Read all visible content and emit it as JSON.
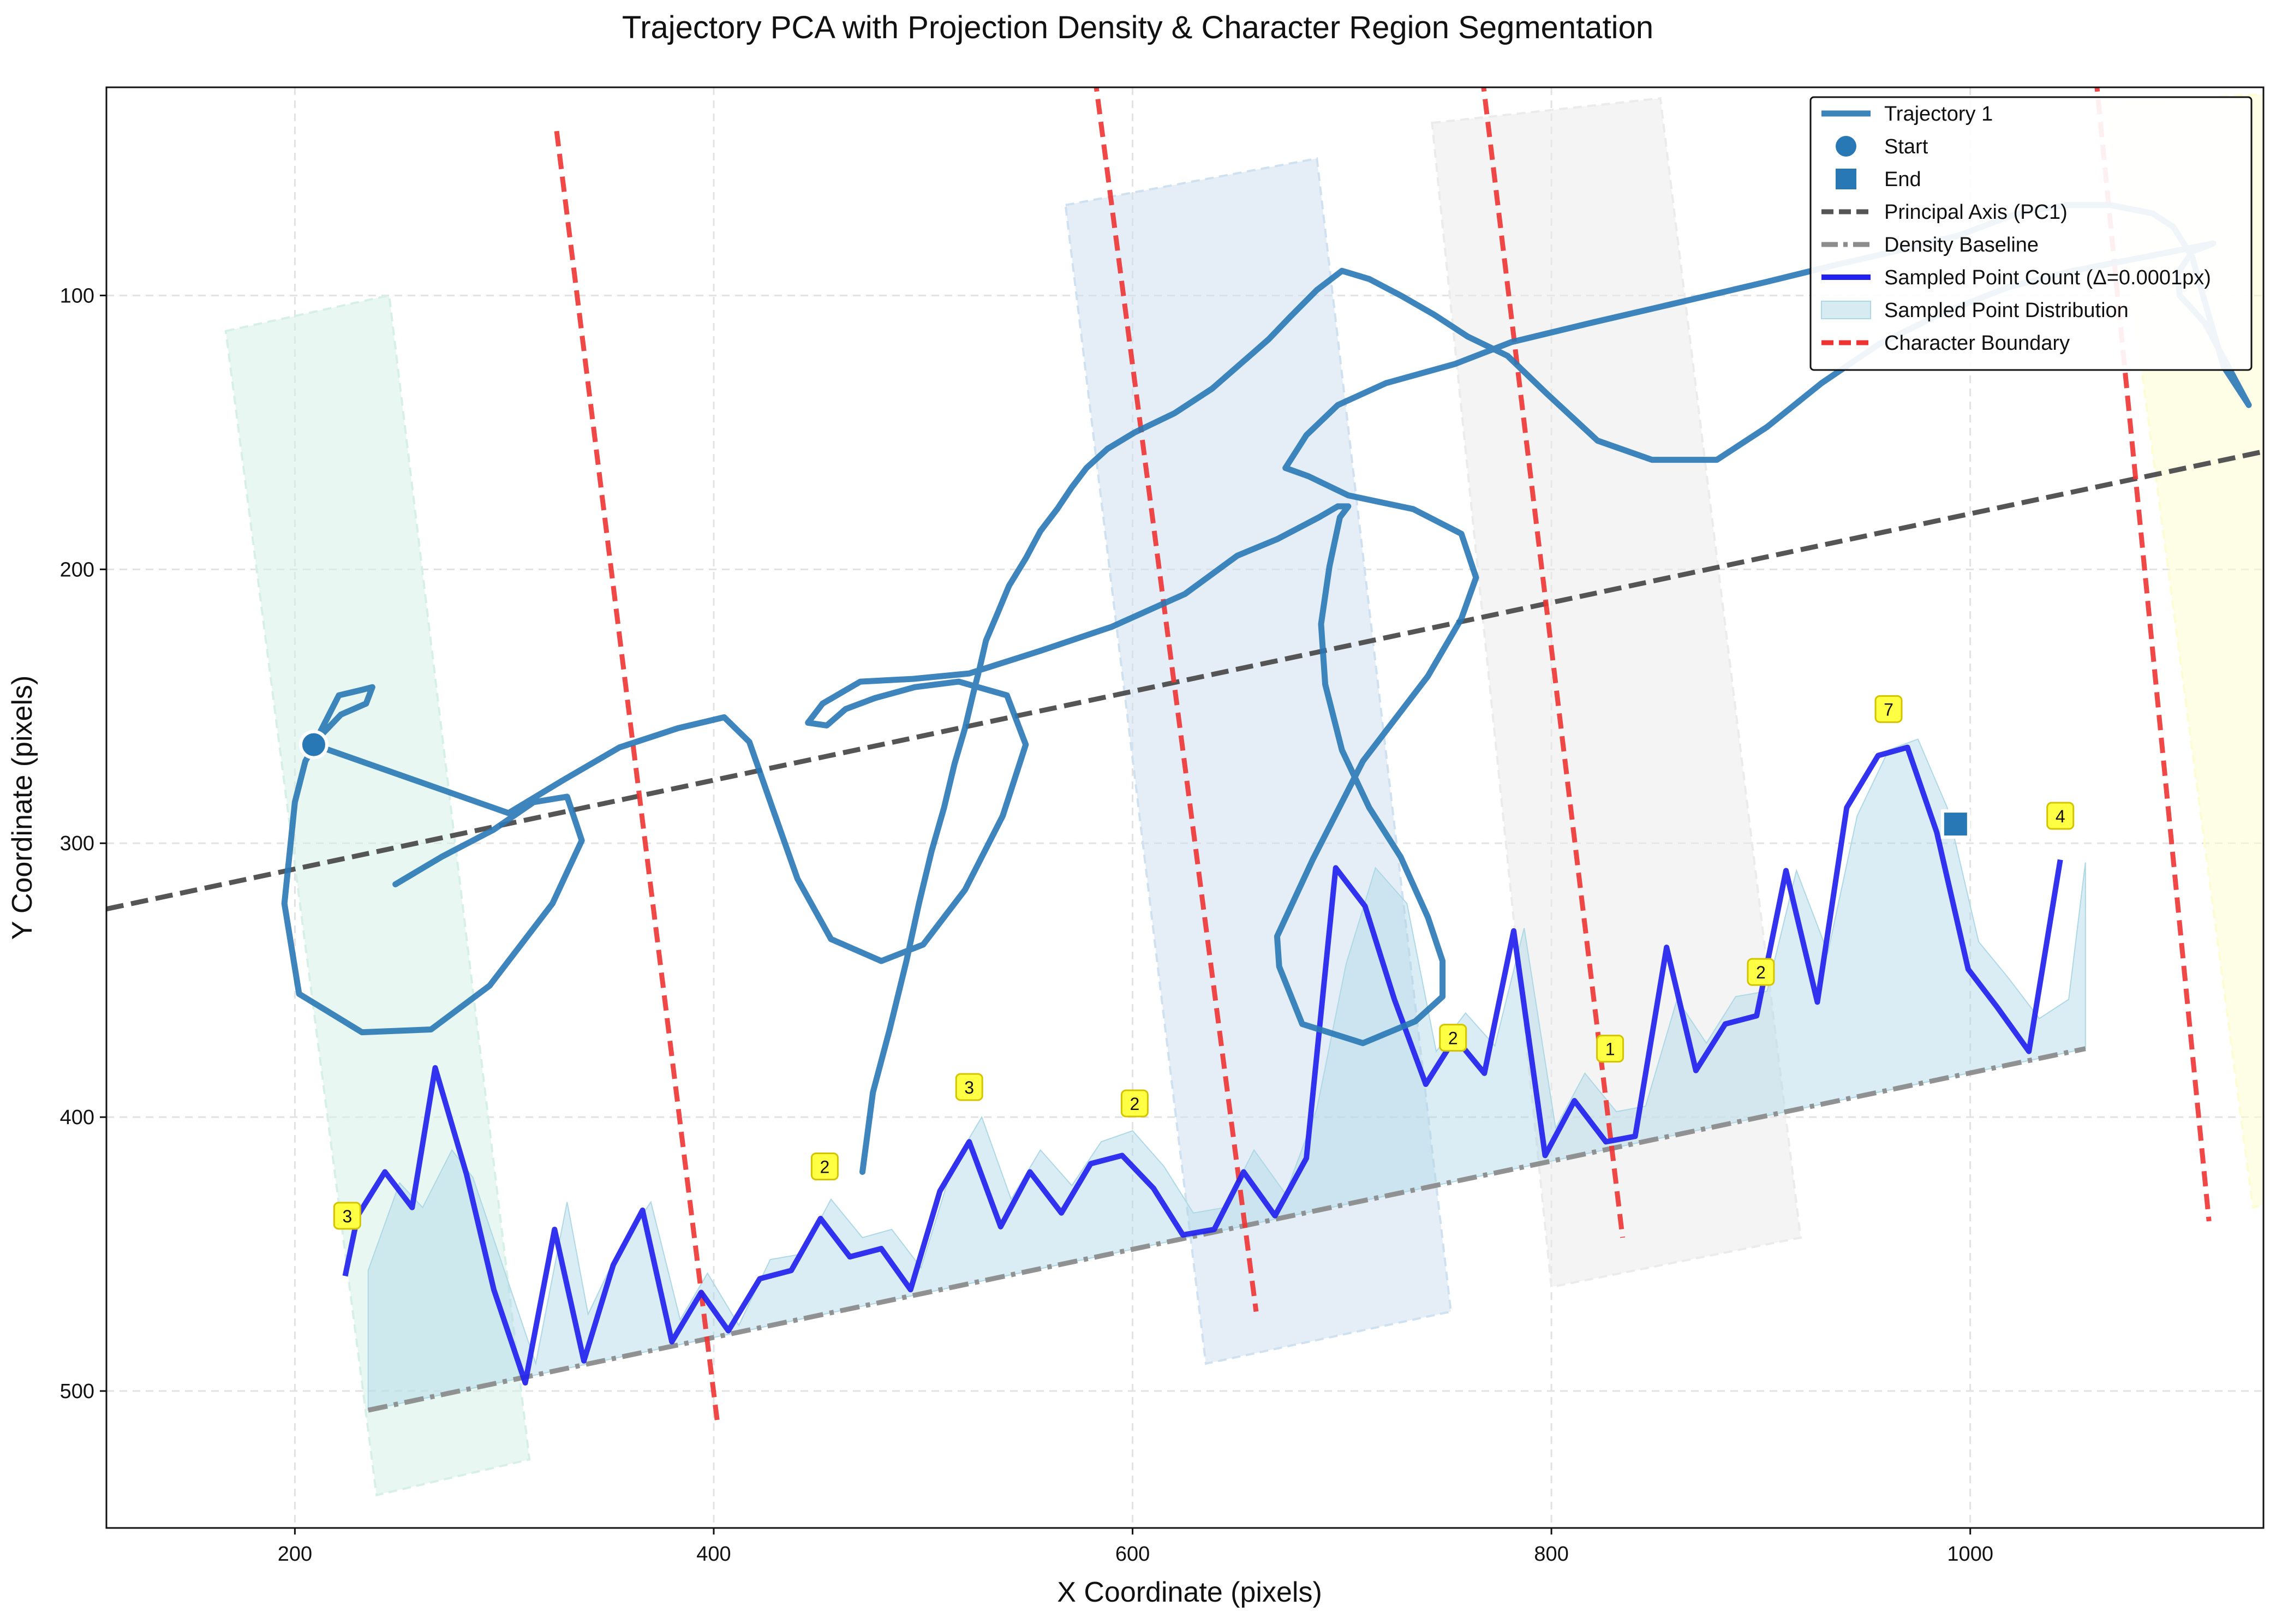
{
  "chart_data": {
    "type": "line",
    "title": "Trajectory PCA with Projection Density & Character Region Segmentation",
    "xlabel": "X Coordinate (pixels)",
    "ylabel": "Y Coordinate (pixels)",
    "xlim": [
      110,
      1140
    ],
    "ylim": [
      550,
      24
    ],
    "y_inverted": true,
    "xticks": [
      200,
      400,
      600,
      800,
      1000
    ],
    "yticks": [
      100,
      200,
      300,
      400,
      500
    ],
    "grid": true,
    "legend_position": "top-right",
    "legend": [
      {
        "key": "trajectory",
        "label": "Trajectory 1"
      },
      {
        "key": "start",
        "label": "Start"
      },
      {
        "key": "end",
        "label": "End"
      },
      {
        "key": "pc1",
        "label": "Principal Axis (PC1)"
      },
      {
        "key": "baseline",
        "label": "Density Baseline"
      },
      {
        "key": "count",
        "label": "Sampled Point Count (Δ=0.0001px)"
      },
      {
        "key": "dist",
        "label": "Sampled Point Distribution"
      },
      {
        "key": "boundary",
        "label": "Character Boundary"
      }
    ],
    "colors": {
      "trajectory": "#2878b5",
      "pc1": "#555555",
      "baseline": "#8c8c8c",
      "count": "#2222ee",
      "dist": "#add8e6",
      "boundary": "#ee3333",
      "annotation_bg": "#ffff44",
      "annotation_border": "#d4c400"
    },
    "regions": [
      {
        "color": "#d6f0e8",
        "corners": [
          [
            167,
            113
          ],
          [
            245,
            100
          ],
          [
            312,
            525
          ],
          [
            239,
            538
          ]
        ]
      },
      {
        "color": "#cfe0f0",
        "corners": [
          [
            568,
            67
          ],
          [
            688,
            50
          ],
          [
            752,
            471
          ],
          [
            635,
            490
          ]
        ]
      },
      {
        "color": "#ebebeb",
        "corners": [
          [
            743,
            37
          ],
          [
            852,
            28
          ],
          [
            919,
            444
          ],
          [
            800,
            462
          ]
        ]
      },
      {
        "color": "#fdfcd2",
        "corners": [
          [
            1065,
            30
          ],
          [
            1173,
            25
          ],
          [
            1244,
            408
          ],
          [
            1135,
            433
          ]
        ]
      }
    ],
    "trajectory": [
      [
        248,
        315
      ],
      [
        270,
        305
      ],
      [
        295,
        295
      ],
      [
        314,
        285
      ],
      [
        330,
        283
      ],
      [
        337,
        299
      ],
      [
        323,
        322
      ],
      [
        293,
        352
      ],
      [
        265,
        368
      ],
      [
        232,
        369
      ],
      [
        202,
        355
      ],
      [
        195,
        322
      ],
      [
        200,
        285
      ],
      [
        205,
        270
      ],
      [
        212,
        261
      ],
      [
        222,
        253
      ],
      [
        234,
        249
      ],
      [
        237,
        243
      ],
      [
        232,
        244
      ],
      [
        221,
        246
      ],
      [
        209,
        264
      ],
      [
        302,
        289
      ],
      [
        328,
        277
      ],
      [
        355,
        265
      ],
      [
        383,
        258
      ],
      [
        405,
        254
      ],
      [
        417,
        263
      ],
      [
        428,
        287
      ],
      [
        440,
        313
      ],
      [
        456,
        335
      ],
      [
        480,
        343
      ],
      [
        500,
        337
      ],
      [
        520,
        317
      ],
      [
        538,
        290
      ],
      [
        549,
        264
      ],
      [
        540,
        246
      ],
      [
        517,
        241
      ],
      [
        496,
        243
      ],
      [
        477,
        247
      ],
      [
        463,
        251
      ],
      [
        454,
        257
      ],
      [
        445,
        256
      ],
      [
        452,
        249
      ],
      [
        470,
        241
      ],
      [
        495,
        240
      ],
      [
        522,
        238
      ],
      [
        555,
        230
      ],
      [
        590,
        221
      ],
      [
        625,
        209
      ],
      [
        650,
        195
      ],
      [
        669,
        189
      ],
      [
        689,
        181
      ],
      [
        698,
        177
      ],
      [
        703,
        177
      ],
      [
        699,
        181
      ],
      [
        694,
        199
      ],
      [
        690,
        220
      ],
      [
        692,
        242
      ],
      [
        700,
        266
      ],
      [
        713,
        287
      ],
      [
        728,
        305
      ],
      [
        741,
        327
      ],
      [
        748,
        343
      ],
      [
        748,
        356
      ],
      [
        735,
        365
      ],
      [
        710,
        373
      ],
      [
        681,
        366
      ],
      [
        670,
        345
      ],
      [
        669,
        334
      ],
      [
        686,
        306
      ],
      [
        710,
        270
      ],
      [
        741,
        239
      ],
      [
        757,
        218
      ],
      [
        764,
        203
      ],
      [
        757,
        187
      ],
      [
        734,
        178
      ],
      [
        703,
        173
      ],
      [
        684,
        166
      ],
      [
        673,
        163
      ],
      [
        683,
        151
      ],
      [
        698,
        140
      ],
      [
        721,
        132
      ],
      [
        754,
        125
      ],
      [
        781,
        117
      ],
      [
        819,
        110
      ],
      [
        864,
        102
      ],
      [
        903,
        95
      ],
      [
        935,
        89
      ],
      [
        969,
        83
      ],
      [
        995,
        78
      ],
      [
        1019,
        71
      ],
      [
        1029,
        69
      ],
      [
        1046,
        67
      ],
      [
        1067,
        67
      ],
      [
        1087,
        70
      ],
      [
        1097,
        75
      ],
      [
        1106,
        86
      ],
      [
        1113,
        105
      ],
      [
        1121,
        126
      ],
      [
        1133,
        140
      ],
      [
        1112,
        110
      ],
      [
        1100,
        100
      ],
      [
        1099,
        92
      ],
      [
        1106,
        84
      ],
      [
        1116,
        81
      ],
      [
        1083,
        86
      ],
      [
        1049,
        91
      ],
      [
        1018,
        97
      ],
      [
        985,
        107
      ],
      [
        956,
        118
      ],
      [
        929,
        132
      ],
      [
        903,
        148
      ],
      [
        879,
        160
      ],
      [
        848,
        160
      ],
      [
        822,
        153
      ],
      [
        798,
        136
      ],
      [
        779,
        122
      ],
      [
        760,
        115
      ],
      [
        744,
        107
      ],
      [
        728,
        100
      ],
      [
        713,
        94
      ],
      [
        700,
        91
      ],
      [
        688,
        98
      ],
      [
        675,
        108
      ],
      [
        665,
        116
      ],
      [
        653,
        124
      ],
      [
        638,
        134
      ],
      [
        620,
        143
      ],
      [
        601,
        150
      ],
      [
        588,
        156
      ],
      [
        578,
        163
      ],
      [
        571,
        170
      ],
      [
        564,
        178
      ],
      [
        556,
        186
      ],
      [
        549,
        196
      ],
      [
        541,
        206
      ],
      [
        535,
        217
      ],
      [
        530,
        226
      ],
      [
        527,
        236
      ],
      [
        524,
        245
      ],
      [
        520,
        258
      ],
      [
        515,
        271
      ],
      [
        510,
        287
      ],
      [
        504,
        303
      ],
      [
        498,
        322
      ],
      [
        492,
        343
      ],
      [
        484,
        368
      ],
      [
        476,
        391
      ],
      [
        471,
        420
      ]
    ],
    "start": [
      209,
      264
    ],
    "end": [
      993,
      293
    ],
    "pc1_line": [
      [
        110,
        324
      ],
      [
        1140,
        157
      ]
    ],
    "baseline_line": [
      [
        235,
        507
      ],
      [
        1055,
        375
      ]
    ],
    "boundaries": [
      [
        [
          325,
          40
        ],
        [
          402,
          513
        ]
      ],
      [
        [
          582,
          20
        ],
        [
          659,
          471
        ]
      ],
      [
        [
          767,
          20
        ],
        [
          834,
          444
        ]
      ],
      [
        [
          1060,
          20
        ],
        [
          1114,
          438
        ]
      ]
    ],
    "count_line": [
      [
        224,
        458
      ],
      [
        230,
        436
      ],
      [
        243,
        420
      ],
      [
        256,
        433
      ],
      [
        267,
        382
      ],
      [
        282,
        421
      ],
      [
        295,
        463
      ],
      [
        310,
        497
      ],
      [
        324,
        441
      ],
      [
        338,
        489
      ],
      [
        352,
        454
      ],
      [
        366,
        434
      ],
      [
        380,
        482
      ],
      [
        394,
        464
      ],
      [
        407,
        478
      ],
      [
        422,
        459
      ],
      [
        437,
        456
      ],
      [
        451,
        437
      ],
      [
        465,
        451
      ],
      [
        480,
        448
      ],
      [
        494,
        463
      ],
      [
        508,
        427
      ],
      [
        522,
        409
      ],
      [
        537,
        440
      ],
      [
        551,
        420
      ],
      [
        566,
        435
      ],
      [
        580,
        417
      ],
      [
        595,
        414
      ],
      [
        610,
        426
      ],
      [
        624,
        443
      ],
      [
        639,
        441
      ],
      [
        653,
        420
      ],
      [
        668,
        436
      ],
      [
        683,
        415
      ],
      [
        697,
        309
      ],
      [
        711,
        323
      ],
      [
        725,
        357
      ],
      [
        740,
        388
      ],
      [
        754,
        371
      ],
      [
        768,
        384
      ],
      [
        782,
        332
      ],
      [
        797,
        414
      ],
      [
        811,
        394
      ],
      [
        826,
        409
      ],
      [
        840,
        407
      ],
      [
        855,
        338
      ],
      [
        869,
        383
      ],
      [
        883,
        366
      ],
      [
        898,
        363
      ],
      [
        912,
        310
      ],
      [
        927,
        358
      ],
      [
        941,
        287
      ],
      [
        956,
        268
      ],
      [
        970,
        265
      ],
      [
        984,
        296
      ],
      [
        999,
        346
      ],
      [
        1013,
        360
      ],
      [
        1028,
        376
      ],
      [
        1043,
        306
      ]
    ],
    "dist_area": [
      [
        235,
        456
      ],
      [
        250,
        424
      ],
      [
        261,
        433
      ],
      [
        275,
        412
      ],
      [
        285,
        422
      ],
      [
        300,
        456
      ],
      [
        315,
        490
      ],
      [
        330,
        431
      ],
      [
        340,
        472
      ],
      [
        355,
        448
      ],
      [
        370,
        431
      ],
      [
        384,
        474
      ],
      [
        397,
        457
      ],
      [
        412,
        476
      ],
      [
        427,
        452
      ],
      [
        442,
        450
      ],
      [
        456,
        430
      ],
      [
        471,
        444
      ],
      [
        485,
        441
      ],
      [
        499,
        455
      ],
      [
        514,
        418
      ],
      [
        528,
        400
      ],
      [
        542,
        430
      ],
      [
        556,
        412
      ],
      [
        571,
        425
      ],
      [
        585,
        409
      ],
      [
        600,
        405
      ],
      [
        615,
        418
      ],
      [
        629,
        435
      ],
      [
        644,
        433
      ],
      [
        658,
        412
      ],
      [
        673,
        428
      ],
      [
        688,
        397
      ],
      [
        702,
        344
      ],
      [
        716,
        309
      ],
      [
        731,
        322
      ],
      [
        745,
        376
      ],
      [
        759,
        362
      ],
      [
        773,
        374
      ],
      [
        787,
        331
      ],
      [
        802,
        404
      ],
      [
        816,
        384
      ],
      [
        831,
        398
      ],
      [
        845,
        396
      ],
      [
        860,
        357
      ],
      [
        874,
        373
      ],
      [
        888,
        356
      ],
      [
        903,
        354
      ],
      [
        917,
        310
      ],
      [
        932,
        340
      ],
      [
        946,
        290
      ],
      [
        961,
        266
      ],
      [
        975,
        262
      ],
      [
        989,
        287
      ],
      [
        1004,
        336
      ],
      [
        1018,
        349
      ],
      [
        1033,
        364
      ],
      [
        1047,
        357
      ],
      [
        1055,
        307
      ],
      [
        1055,
        375
      ],
      [
        235,
        507
      ]
    ],
    "annotations": [
      {
        "x": 225,
        "y": 436,
        "text": "3"
      },
      {
        "x": 453,
        "y": 418,
        "text": "2"
      },
      {
        "x": 522,
        "y": 389,
        "text": "3"
      },
      {
        "x": 601,
        "y": 395,
        "text": "2"
      },
      {
        "x": 753,
        "y": 371,
        "text": "2"
      },
      {
        "x": 828,
        "y": 375,
        "text": "1"
      },
      {
        "x": 900,
        "y": 347,
        "text": "2"
      },
      {
        "x": 961,
        "y": 251,
        "text": "7"
      },
      {
        "x": 1043,
        "y": 290,
        "text": "4"
      }
    ]
  }
}
